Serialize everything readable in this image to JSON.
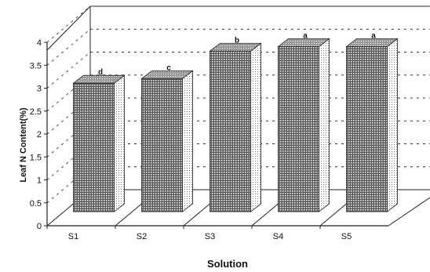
{
  "chart_data": {
    "type": "bar",
    "categories": [
      "S1",
      "S2",
      "S3",
      "S4",
      "S5"
    ],
    "values": [
      2.8,
      2.9,
      3.5,
      3.6,
      3.6
    ],
    "bar_labels": [
      "d",
      "c",
      "b",
      "a",
      "a"
    ],
    "xlabel": "Solution",
    "ylabel": "Leaf N Content(%)",
    "ylim": [
      0,
      4
    ],
    "yticks": [
      0,
      0.5,
      1,
      1.5,
      2,
      2.5,
      3,
      3.5,
      4
    ],
    "grid": true,
    "three_d": true
  }
}
